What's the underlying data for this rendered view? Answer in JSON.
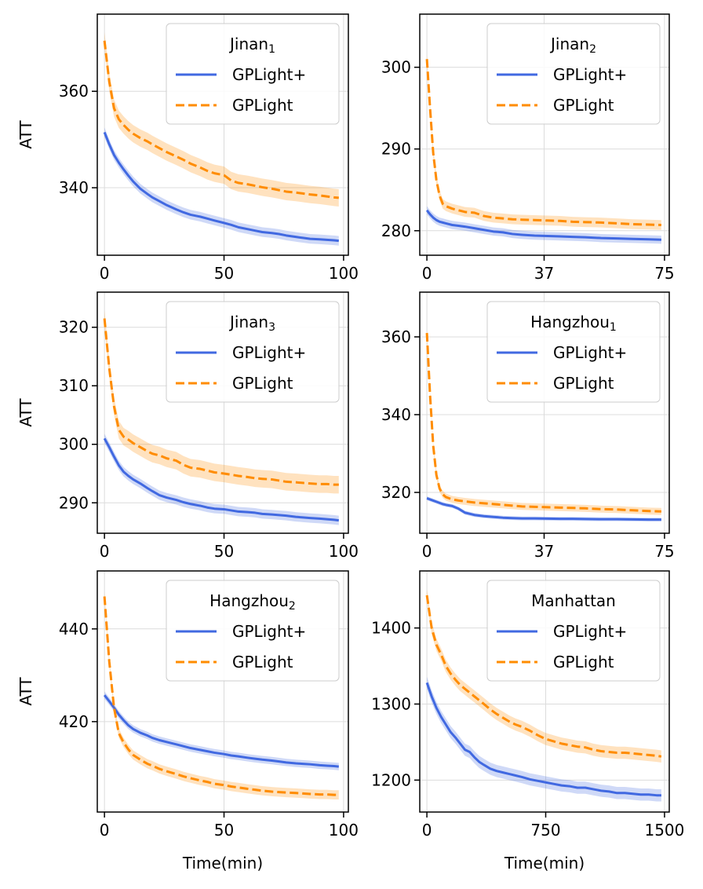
{
  "figure": {
    "background": "#ffffff",
    "grid_color": "#dcdcdc",
    "spine_color": "#000000"
  },
  "series_styles": {
    "GPLight+": {
      "color": "#4169e1",
      "band_color": "#4169e1",
      "dash": "solid"
    },
    "GPLight": {
      "color": "#ff8c00",
      "band_color": "#ff8c00",
      "dash": "dashed"
    }
  },
  "chart_data": [
    {
      "type": "line",
      "title": "Jinan",
      "title_subscript": "1",
      "xlabel": "",
      "ylabel": "ATT",
      "xlim": [
        -3,
        102
      ],
      "ylim": [
        326,
        376
      ],
      "xticks": [
        0,
        50,
        100
      ],
      "yticks": [
        340,
        360
      ],
      "grid": true,
      "legend_position": "upper-right",
      "x": [
        0,
        2,
        4,
        6,
        8,
        10,
        12,
        15,
        18,
        20,
        23,
        26,
        30,
        33,
        36,
        40,
        43,
        46,
        50,
        53,
        56,
        60,
        63,
        66,
        70,
        73,
        76,
        80,
        83,
        86,
        90,
        93,
        96,
        98
      ],
      "series": [
        {
          "name": "GPLight+",
          "values": [
            351.5,
            349.0,
            346.8,
            345.2,
            343.8,
            342.5,
            341.3,
            339.8,
            338.7,
            338.0,
            337.2,
            336.4,
            335.5,
            334.9,
            334.4,
            334.0,
            333.6,
            333.2,
            332.7,
            332.3,
            331.8,
            331.4,
            331.1,
            330.8,
            330.6,
            330.4,
            330.1,
            329.8,
            329.6,
            329.4,
            329.3,
            329.2,
            329.1,
            329.0
          ],
          "band": 1.0
        },
        {
          "name": "GPLight",
          "values": [
            370.5,
            362.0,
            356.5,
            354.2,
            353.0,
            352.0,
            351.2,
            350.3,
            349.6,
            349.0,
            348.2,
            347.4,
            346.5,
            345.8,
            345.0,
            344.2,
            343.5,
            343.0,
            342.6,
            341.5,
            341.0,
            340.7,
            340.4,
            340.1,
            339.8,
            339.5,
            339.2,
            339.0,
            338.8,
            338.6,
            338.4,
            338.2,
            338.0,
            337.9
          ],
          "band": 1.8
        }
      ]
    },
    {
      "type": "line",
      "title": "Jinan",
      "title_subscript": "2",
      "xlabel": "",
      "ylabel": "",
      "xlim": [
        -2.25,
        76.5
      ],
      "ylim": [
        277.0,
        306.5
      ],
      "xticks": [
        0,
        37,
        75
      ],
      "yticks": [
        280,
        290,
        300
      ],
      "grid": true,
      "legend_position": "upper-right",
      "x": [
        0,
        1,
        2,
        3,
        4,
        5,
        6,
        8,
        10,
        12,
        15,
        18,
        21,
        24,
        27,
        30,
        34,
        38,
        42,
        46,
        50,
        55,
        60,
        65,
        70,
        74
      ],
      "series": [
        {
          "name": "GPLight+",
          "values": [
            282.5,
            282.0,
            281.6,
            281.3,
            281.1,
            281.0,
            280.9,
            280.7,
            280.6,
            280.5,
            280.3,
            280.1,
            279.9,
            279.8,
            279.6,
            279.5,
            279.4,
            279.35,
            279.3,
            279.25,
            279.2,
            279.1,
            279.05,
            279.0,
            278.95,
            278.9
          ],
          "band": 0.5
        },
        {
          "name": "GPLight",
          "values": [
            301.0,
            295.0,
            289.5,
            286.2,
            284.3,
            283.3,
            283.0,
            282.7,
            282.5,
            282.3,
            282.2,
            281.8,
            281.6,
            281.5,
            281.4,
            281.35,
            281.3,
            281.25,
            281.2,
            281.1,
            281.05,
            281.0,
            280.9,
            280.8,
            280.75,
            280.7
          ],
          "band": 0.6
        }
      ]
    },
    {
      "type": "line",
      "title": "Jinan",
      "title_subscript": "3",
      "xlabel": "",
      "ylabel": "ATT",
      "xlim": [
        -3,
        102
      ],
      "ylim": [
        284.8,
        326.0
      ],
      "xticks": [
        0,
        50,
        100
      ],
      "yticks": [
        290,
        300,
        310,
        320
      ],
      "grid": true,
      "legend_position": "upper-right",
      "x": [
        0,
        2,
        4,
        6,
        8,
        10,
        12,
        15,
        18,
        20,
        23,
        26,
        30,
        33,
        36,
        40,
        43,
        46,
        50,
        53,
        56,
        60,
        63,
        66,
        70,
        73,
        76,
        80,
        83,
        86,
        90,
        93,
        96,
        98
      ],
      "series": [
        {
          "name": "GPLight+",
          "values": [
            301.0,
            299.5,
            297.9,
            296.4,
            295.3,
            294.6,
            294.0,
            293.3,
            292.5,
            292.0,
            291.3,
            290.9,
            290.5,
            290.1,
            289.8,
            289.5,
            289.2,
            289.0,
            288.9,
            288.7,
            288.5,
            288.4,
            288.3,
            288.1,
            288.0,
            287.9,
            287.8,
            287.6,
            287.5,
            287.4,
            287.3,
            287.2,
            287.1,
            287.0
          ],
          "band": 0.8
        },
        {
          "name": "GPLight",
          "values": [
            321.5,
            313.0,
            306.5,
            302.5,
            301.3,
            300.8,
            300.2,
            299.5,
            298.8,
            298.4,
            298.1,
            297.6,
            297.2,
            296.5,
            296.0,
            295.8,
            295.5,
            295.2,
            295.0,
            294.8,
            294.6,
            294.4,
            294.2,
            294.1,
            294.0,
            293.8,
            293.6,
            293.5,
            293.4,
            293.3,
            293.2,
            293.2,
            293.1,
            293.1
          ],
          "band": 1.5
        }
      ]
    },
    {
      "type": "line",
      "title": "Hangzhou",
      "title_subscript": "1",
      "xlabel": "",
      "ylabel": "",
      "xlim": [
        -2.25,
        76.5
      ],
      "ylim": [
        309.5,
        371.5
      ],
      "xticks": [
        0,
        37,
        75
      ],
      "yticks": [
        320,
        340,
        360
      ],
      "grid": true,
      "legend_position": "upper-right",
      "x": [
        0,
        1,
        2,
        3,
        4,
        5,
        6,
        8,
        10,
        12,
        15,
        18,
        21,
        24,
        27,
        30,
        34,
        38,
        42,
        46,
        50,
        55,
        60,
        65,
        70,
        74
      ],
      "series": [
        {
          "name": "GPLight+",
          "values": [
            318.5,
            318.2,
            317.9,
            317.6,
            317.3,
            317.0,
            316.8,
            316.5,
            315.8,
            314.8,
            314.2,
            313.9,
            313.7,
            313.5,
            313.4,
            313.3,
            313.3,
            313.25,
            313.2,
            313.2,
            313.15,
            313.1,
            313.1,
            313.05,
            313.0,
            313.0
          ],
          "band": 0.5
        },
        {
          "name": "GPLight",
          "values": [
            361.0,
            345.0,
            332.0,
            324.5,
            321.0,
            319.5,
            318.8,
            318.2,
            317.9,
            317.7,
            317.4,
            317.2,
            317.0,
            316.8,
            316.6,
            316.4,
            316.3,
            316.2,
            316.1,
            316.0,
            315.9,
            315.7,
            315.6,
            315.4,
            315.2,
            315.1
          ],
          "band": 0.9
        }
      ]
    },
    {
      "type": "line",
      "title": "Hangzhou",
      "title_subscript": "2",
      "xlabel": "Time(min)",
      "ylabel": "ATT",
      "xlim": [
        -3,
        102
      ],
      "ylim": [
        400.5,
        452.5
      ],
      "xticks": [
        0,
        50,
        100
      ],
      "yticks": [
        420,
        440
      ],
      "grid": true,
      "legend_position": "upper-right",
      "x": [
        0,
        2,
        4,
        6,
        8,
        10,
        12,
        15,
        18,
        20,
        23,
        26,
        30,
        33,
        36,
        40,
        43,
        46,
        50,
        53,
        56,
        60,
        63,
        66,
        70,
        73,
        76,
        80,
        83,
        86,
        90,
        93,
        96,
        98
      ],
      "series": [
        {
          "name": "GPLight+",
          "values": [
            425.7,
            424.4,
            423.0,
            421.5,
            420.3,
            419.2,
            418.4,
            417.6,
            417.0,
            416.5,
            416.0,
            415.6,
            415.1,
            414.7,
            414.3,
            413.9,
            413.6,
            413.3,
            413.0,
            412.7,
            412.5,
            412.2,
            412.0,
            411.8,
            411.6,
            411.4,
            411.2,
            411.0,
            410.9,
            410.8,
            410.6,
            410.5,
            410.4,
            410.3
          ],
          "band": 0.8
        },
        {
          "name": "GPLight",
          "values": [
            447.0,
            433.0,
            423.0,
            417.5,
            415.5,
            414.0,
            412.8,
            411.8,
            410.9,
            410.5,
            409.8,
            409.3,
            408.7,
            408.2,
            407.8,
            407.3,
            407.0,
            406.6,
            406.3,
            406.0,
            405.8,
            405.5,
            405.3,
            405.1,
            404.9,
            404.8,
            404.7,
            404.6,
            404.5,
            404.4,
            404.3,
            404.3,
            404.2,
            404.2
          ],
          "band": 1.0
        }
      ]
    },
    {
      "type": "line",
      "title": "Manhattan",
      "title_subscript": "",
      "xlabel": "Time(min)",
      "ylabel": "",
      "xlim": [
        -45,
        1530
      ],
      "ylim": [
        1158,
        1475
      ],
      "xticks": [
        0,
        750,
        1500
      ],
      "yticks": [
        1200,
        1300,
        1400
      ],
      "grid": true,
      "legend_position": "upper-right",
      "x": [
        0,
        30,
        60,
        90,
        120,
        150,
        180,
        210,
        240,
        270,
        300,
        330,
        360,
        400,
        440,
        480,
        520,
        560,
        600,
        650,
        700,
        750,
        800,
        850,
        900,
        950,
        1000,
        1050,
        1100,
        1150,
        1200,
        1250,
        1300,
        1350,
        1400,
        1450,
        1480
      ],
      "series": [
        {
          "name": "GPLight+",
          "values": [
            1328,
            1310,
            1295,
            1283,
            1273,
            1263,
            1256,
            1248,
            1240,
            1237,
            1230,
            1224,
            1220,
            1215,
            1212,
            1210,
            1208,
            1206,
            1204,
            1201,
            1199,
            1197,
            1195,
            1193,
            1192,
            1190,
            1190,
            1188,
            1186,
            1185,
            1183,
            1183,
            1182,
            1181,
            1181,
            1180,
            1180
          ],
          "band": 8
        },
        {
          "name": "GPLight",
          "values": [
            1443,
            1400,
            1378,
            1365,
            1350,
            1340,
            1332,
            1325,
            1320,
            1315,
            1310,
            1305,
            1300,
            1293,
            1287,
            1282,
            1277,
            1273,
            1270,
            1265,
            1259,
            1254,
            1251,
            1248,
            1246,
            1244,
            1243,
            1240,
            1238,
            1237,
            1236,
            1236,
            1235,
            1234,
            1233,
            1232,
            1231
          ],
          "band": 8
        }
      ]
    }
  ]
}
